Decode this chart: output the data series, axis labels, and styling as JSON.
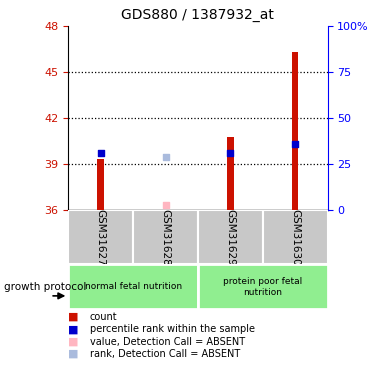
{
  "title": "GDS880 / 1387932_at",
  "samples": [
    "GSM31627",
    "GSM31628",
    "GSM31629",
    "GSM31630"
  ],
  "ylim_left": [
    36,
    48
  ],
  "yticks_left": [
    36,
    39,
    42,
    45,
    48
  ],
  "ytick_labels_right": [
    "0",
    "25",
    "50",
    "75",
    "100%"
  ],
  "count_values": [
    39.3,
    36.0,
    40.8,
    46.3
  ],
  "count_base": 36,
  "percentile_values": [
    39.75,
    null,
    39.75,
    40.3
  ],
  "absent_value_values": [
    null,
    36.35,
    null,
    null
  ],
  "absent_rank_values": [
    null,
    39.45,
    null,
    null
  ],
  "count_color": "#CC1100",
  "percentile_color": "#0000CC",
  "absent_value_color": "#FFB6C1",
  "absent_rank_color": "#AABBDD",
  "bar_width": 0.1,
  "dot_size": 22,
  "header_bg_color": "#C8C8C8",
  "group_bg_color": "#90EE90",
  "legend_items": [
    "count",
    "percentile rank within the sample",
    "value, Detection Call = ABSENT",
    "rank, Detection Call = ABSENT"
  ],
  "legend_colors": [
    "#CC1100",
    "#0000CC",
    "#FFB6C1",
    "#AABBDD"
  ]
}
